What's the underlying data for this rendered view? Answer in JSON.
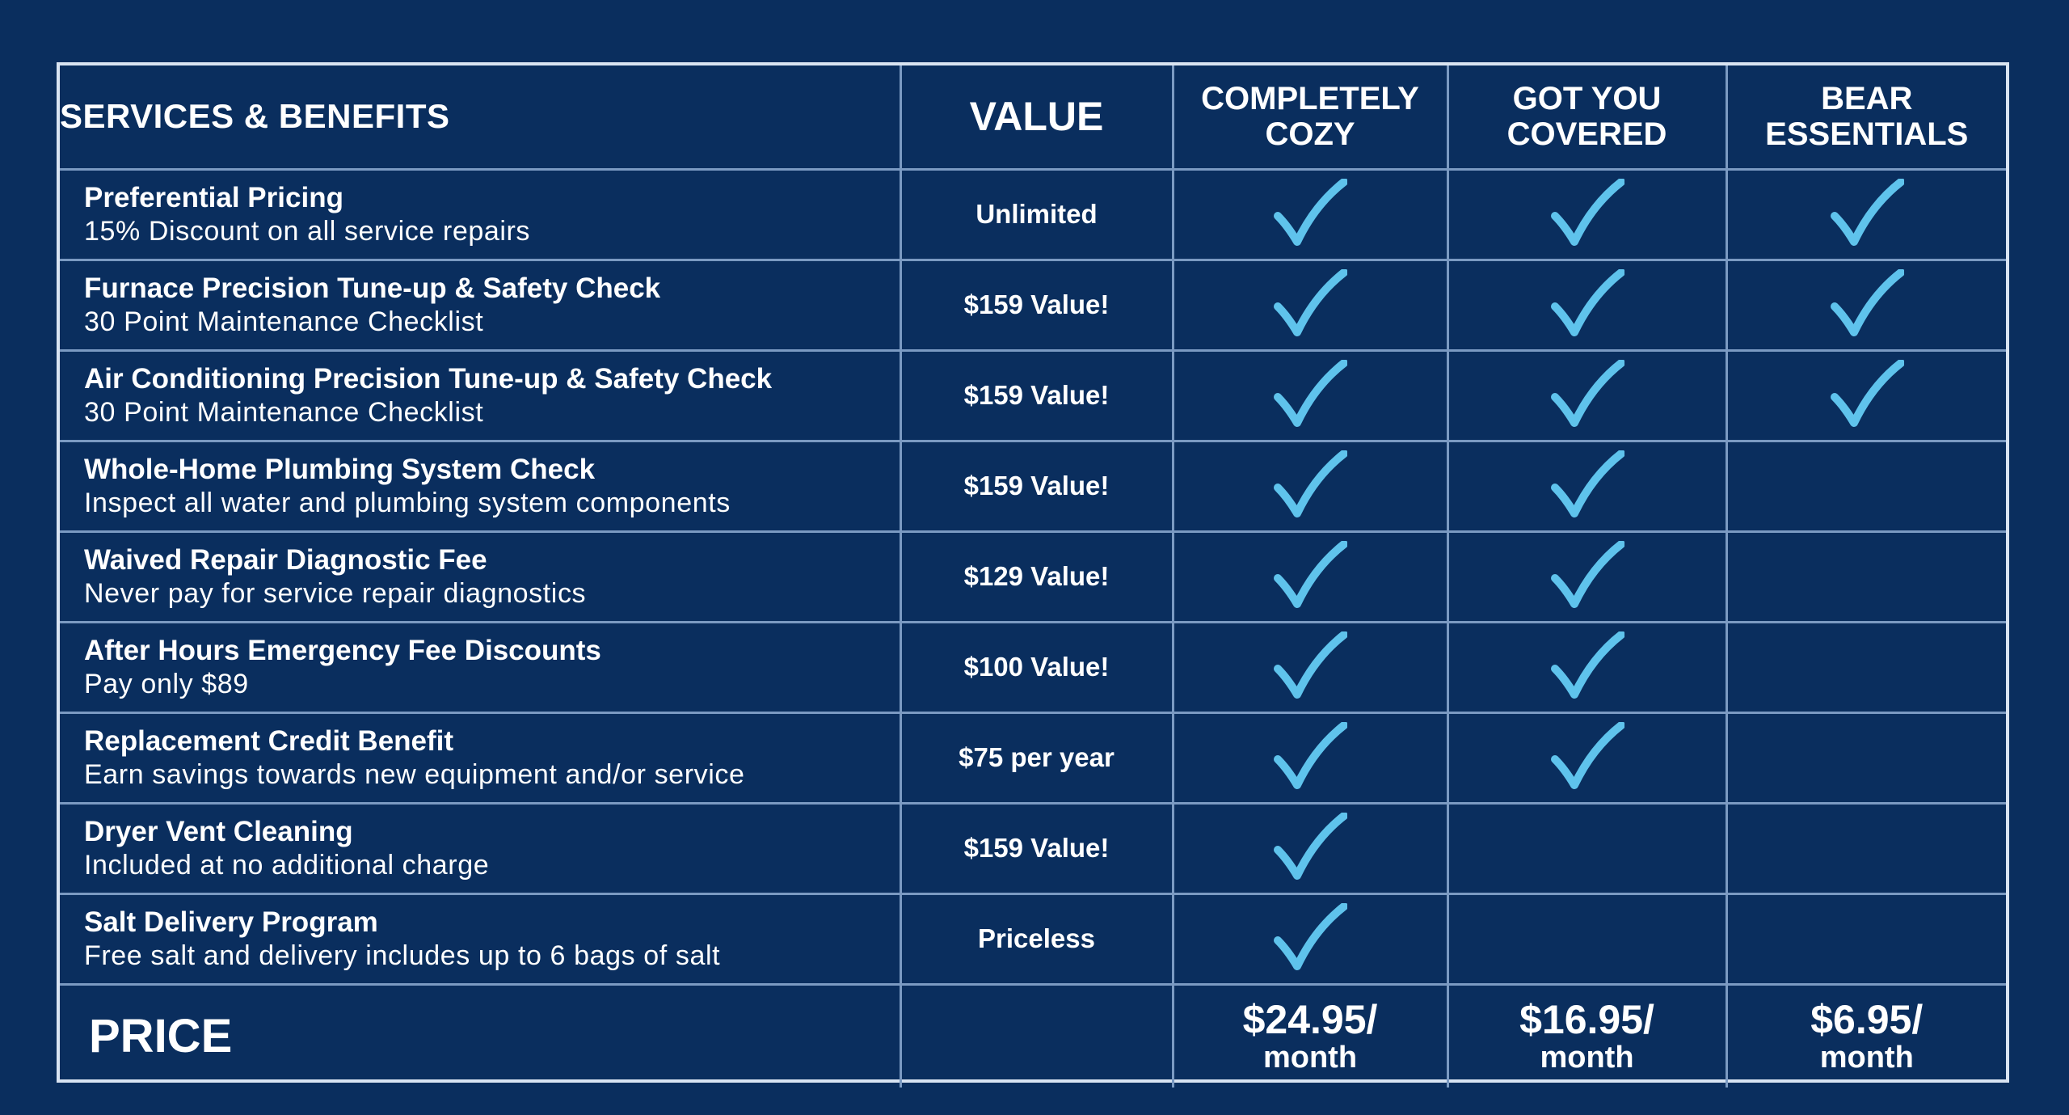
{
  "header": {
    "services_label": "SERVICES & BENEFITS",
    "value_label": "VALUE",
    "plans": [
      {
        "line1": "COMPLETELY",
        "line2": "COZY"
      },
      {
        "line1": "GOT YOU",
        "line2": "COVERED"
      },
      {
        "line1": "BEAR",
        "line2": "ESSENTIALS"
      }
    ]
  },
  "services": [
    {
      "title": "Preferential Pricing",
      "desc": "15% Discount on all service repairs",
      "value": "Unlimited",
      "included": [
        true,
        true,
        true
      ]
    },
    {
      "title": "Furnace Precision Tune-up & Safety Check",
      "desc": "30 Point Maintenance Checklist",
      "value": "$159 Value!",
      "included": [
        true,
        true,
        true
      ]
    },
    {
      "title": "Air Conditioning Precision Tune-up & Safety Check",
      "desc": "30 Point Maintenance Checklist",
      "value": "$159 Value!",
      "included": [
        true,
        true,
        true
      ]
    },
    {
      "title": "Whole-Home Plumbing System Check",
      "desc": "Inspect all water and plumbing system components",
      "value": "$159 Value!",
      "included": [
        true,
        true,
        false
      ]
    },
    {
      "title": "Waived Repair Diagnostic Fee",
      "desc": "Never pay for service repair diagnostics",
      "value": "$129 Value!",
      "included": [
        true,
        true,
        false
      ]
    },
    {
      "title": "After Hours Emergency Fee Discounts",
      "desc": "Pay only $89",
      "value": "$100 Value!",
      "included": [
        true,
        true,
        false
      ]
    },
    {
      "title": "Replacement Credit Benefit",
      "desc": "Earn savings towards new equipment and/or service",
      "value": "$75 per year",
      "included": [
        true,
        true,
        false
      ]
    },
    {
      "title": "Dryer Vent Cleaning",
      "desc": "Included at no additional charge",
      "value": "$159 Value!",
      "included": [
        true,
        false,
        false
      ]
    },
    {
      "title": "Salt Delivery Program",
      "desc": "Free salt and delivery includes up to 6 bags of salt",
      "value": "Priceless",
      "included": [
        true,
        false,
        false
      ]
    }
  ],
  "price": {
    "label": "PRICE",
    "plans": [
      {
        "amount": "$24.95/",
        "period": "month"
      },
      {
        "amount": "$16.95/",
        "period": "month"
      },
      {
        "amount": "$6.95/",
        "period": "month"
      }
    ]
  },
  "colors": {
    "background": "#0a2e5e",
    "grid_lines": "#7b9ac2",
    "outer_border": "#d9e4f2",
    "checkmark": "#5fc3ec",
    "text": "#ffffff"
  },
  "icons": {
    "included": "checkmark-icon"
  }
}
